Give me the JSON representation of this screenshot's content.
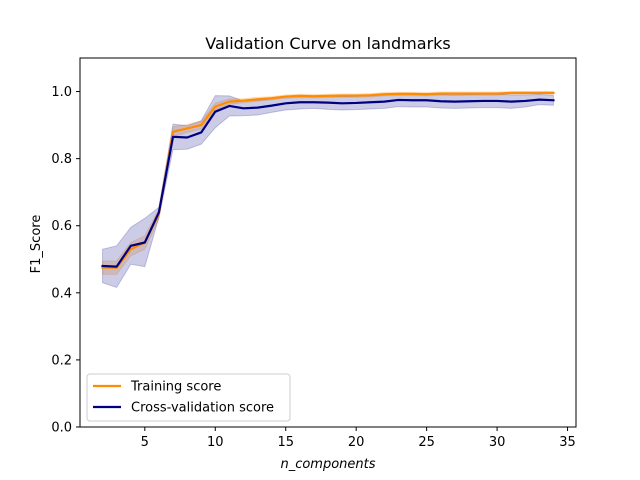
{
  "chart_data": {
    "type": "line",
    "title": "Validation Curve on landmarks",
    "xlabel": "n_components",
    "ylabel": "F1_Score",
    "xlim": [
      0.4,
      35.6
    ],
    "ylim": [
      0.0,
      1.1
    ],
    "xticks": [
      5,
      10,
      15,
      20,
      25,
      30,
      35
    ],
    "yticks": [
      0.0,
      0.2,
      0.4,
      0.6,
      0.8,
      1.0
    ],
    "xtick_labels": [
      "5",
      "10",
      "15",
      "20",
      "25",
      "30",
      "35"
    ],
    "ytick_labels": [
      "0.0",
      "0.2",
      "0.4",
      "0.6",
      "0.8",
      "1.0"
    ],
    "grid": false,
    "legend_position": "lower-left",
    "x": [
      2,
      3,
      4,
      5,
      6,
      7,
      8,
      9,
      10,
      11,
      12,
      13,
      14,
      15,
      16,
      17,
      18,
      19,
      20,
      21,
      22,
      23,
      24,
      25,
      26,
      27,
      28,
      29,
      30,
      31,
      32,
      33,
      34
    ],
    "series": [
      {
        "name": "Training score",
        "color": "#ff8c00",
        "values": [
          0.475,
          0.475,
          0.53,
          0.55,
          0.635,
          0.88,
          0.89,
          0.9,
          0.955,
          0.97,
          0.973,
          0.977,
          0.98,
          0.985,
          0.987,
          0.986,
          0.987,
          0.988,
          0.988,
          0.989,
          0.992,
          0.993,
          0.993,
          0.992,
          0.994,
          0.994,
          0.994,
          0.994,
          0.994,
          0.996,
          0.996,
          0.996,
          0.996
        ],
        "std": [
          0.02,
          0.02,
          0.02,
          0.02,
          0.015,
          0.015,
          0.012,
          0.012,
          0.01,
          0.008,
          0.006,
          0.006,
          0.005,
          0.005,
          0.005,
          0.005,
          0.005,
          0.005,
          0.005,
          0.005,
          0.005,
          0.005,
          0.005,
          0.005,
          0.005,
          0.005,
          0.005,
          0.005,
          0.005,
          0.004,
          0.004,
          0.004,
          0.004
        ]
      },
      {
        "name": "Cross-validation score",
        "color": "#000080",
        "values": [
          0.48,
          0.478,
          0.54,
          0.55,
          0.64,
          0.865,
          0.863,
          0.878,
          0.94,
          0.957,
          0.95,
          0.952,
          0.958,
          0.965,
          0.968,
          0.968,
          0.967,
          0.965,
          0.966,
          0.968,
          0.97,
          0.975,
          0.974,
          0.974,
          0.971,
          0.97,
          0.971,
          0.972,
          0.972,
          0.97,
          0.972,
          0.976,
          0.974
        ],
        "std": [
          0.05,
          0.062,
          0.055,
          0.072,
          0.015,
          0.038,
          0.035,
          0.035,
          0.048,
          0.03,
          0.022,
          0.022,
          0.02,
          0.02,
          0.02,
          0.018,
          0.02,
          0.02,
          0.02,
          0.02,
          0.02,
          0.02,
          0.02,
          0.02,
          0.02,
          0.02,
          0.02,
          0.02,
          0.02,
          0.02,
          0.018,
          0.015,
          0.015
        ]
      }
    ]
  }
}
